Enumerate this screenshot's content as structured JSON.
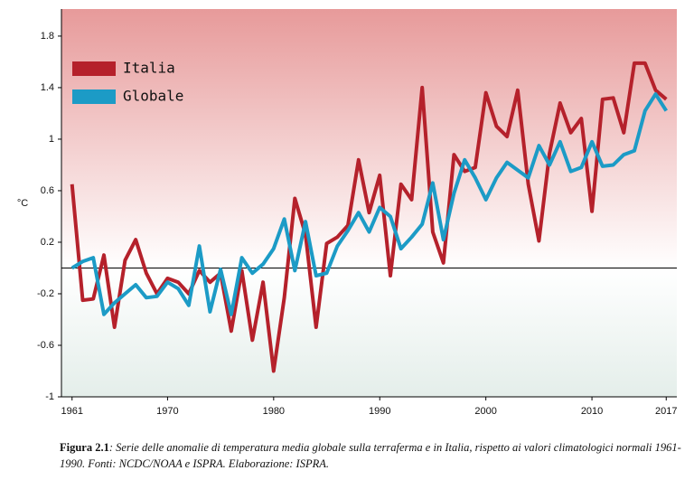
{
  "chart_data": {
    "type": "line",
    "y_label": "°C",
    "x": [
      1961,
      1962,
      1963,
      1964,
      1965,
      1966,
      1967,
      1968,
      1969,
      1970,
      1971,
      1972,
      1973,
      1974,
      1975,
      1976,
      1977,
      1978,
      1979,
      1980,
      1981,
      1982,
      1983,
      1984,
      1985,
      1986,
      1987,
      1988,
      1989,
      1990,
      1991,
      1992,
      1993,
      1994,
      1995,
      1996,
      1997,
      1998,
      1999,
      2000,
      2001,
      2002,
      2003,
      2004,
      2005,
      2006,
      2007,
      2008,
      2009,
      2010,
      2011,
      2012,
      2013,
      2014,
      2015,
      2016,
      2017
    ],
    "series": [
      {
        "name": "Italia",
        "color": "#b5212b",
        "values": [
          0.65,
          -0.25,
          -0.24,
          0.1,
          -0.46,
          0.06,
          0.22,
          -0.04,
          -0.2,
          -0.08,
          -0.11,
          -0.2,
          -0.02,
          -0.11,
          -0.04,
          -0.49,
          -0.02,
          -0.56,
          -0.11,
          -0.8,
          -0.23,
          0.54,
          0.26,
          -0.46,
          0.19,
          0.24,
          0.33,
          0.84,
          0.43,
          0.72,
          -0.06,
          0.65,
          0.53,
          1.4,
          0.28,
          0.04,
          0.88,
          0.75,
          0.78,
          1.36,
          1.1,
          1.02,
          1.38,
          0.65,
          0.21,
          0.89,
          1.28,
          1.05,
          1.16,
          0.44,
          1.31,
          1.32,
          1.05,
          1.59,
          1.59,
          1.38,
          1.31
        ]
      },
      {
        "name": "Globale",
        "color": "#1c9bc6",
        "values": [
          0.0,
          0.05,
          0.08,
          -0.36,
          -0.27,
          -0.2,
          -0.13,
          -0.23,
          -0.22,
          -0.11,
          -0.16,
          -0.29,
          0.17,
          -0.34,
          -0.01,
          -0.36,
          0.08,
          -0.04,
          0.03,
          0.15,
          0.38,
          -0.02,
          0.36,
          -0.06,
          -0.04,
          0.17,
          0.29,
          0.43,
          0.28,
          0.47,
          0.4,
          0.15,
          0.24,
          0.34,
          0.66,
          0.22,
          0.58,
          0.84,
          0.7,
          0.53,
          0.7,
          0.82,
          0.76,
          0.7,
          0.95,
          0.8,
          0.98,
          0.75,
          0.78,
          0.98,
          0.79,
          0.8,
          0.88,
          0.91,
          1.22,
          1.35,
          1.22
        ]
      }
    ],
    "xlim": [
      1960,
      2018
    ],
    "xticks": [
      1961,
      1970,
      1980,
      1990,
      2000,
      2010,
      2017
    ],
    "ylim": [
      -1,
      2.01
    ],
    "yticks": [
      1.8,
      1.4,
      1,
      0.6,
      0.2,
      -0.2,
      -0.6,
      -1
    ],
    "legend": "upper left"
  },
  "caption": {
    "label": "Figura 2.1",
    "text": ": Serie delle anomalie di temperatura media globale sulla terraferma e in Italia, rispetto ai valori climatologici normali 1961-1990. Fonti: NCDC/NOAA e ISPRA. Elaborazione: ISPRA."
  }
}
